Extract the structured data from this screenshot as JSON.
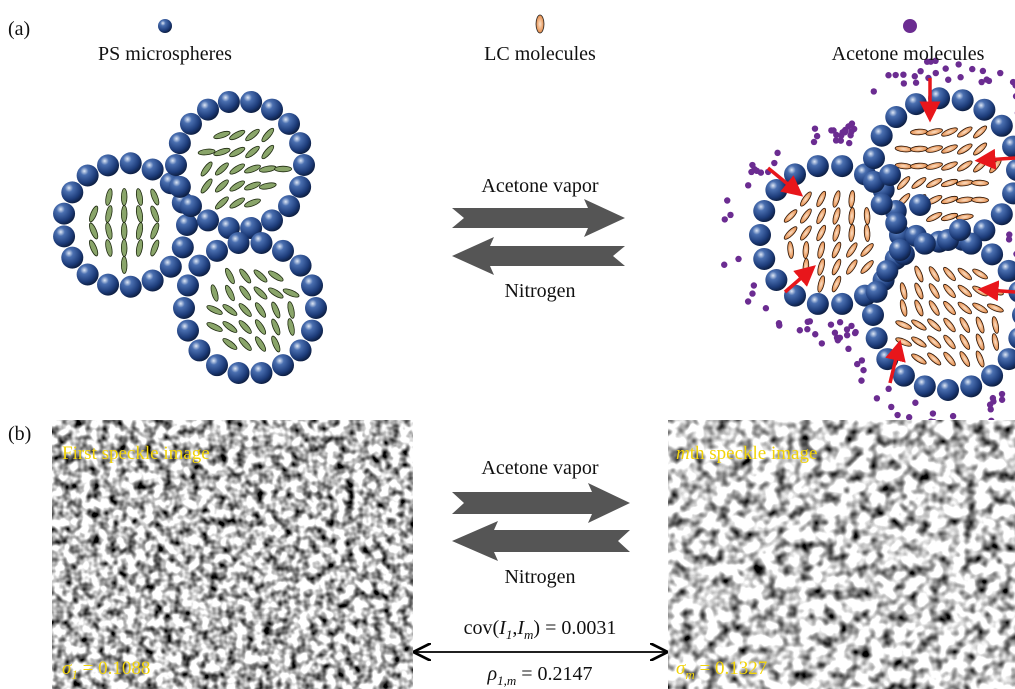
{
  "panel_a": {
    "label": "(a)",
    "legend": [
      {
        "label": "PS microspheres"
      },
      {
        "label": "LC molecules"
      },
      {
        "label": "Acetone molecules"
      }
    ],
    "forward": "Acetone vapor",
    "reverse": "Nitrogen"
  },
  "panel_b": {
    "label": "(b)",
    "forward": "Acetone vapor",
    "reverse": "Nitrogen",
    "first_image": {
      "caption": "First speckle image",
      "sigma": {
        "symbol": "σ",
        "subscript": "1",
        "rest": " = 0.1088"
      }
    },
    "mth_image": {
      "caption": {
        "italic": "m",
        "rest": "th speckle image"
      },
      "sigma": {
        "symbol": "σ",
        "subscript": "m",
        "rest": " = 0.1327"
      }
    },
    "cov": {
      "prefix": "cov(",
      "var1": "I",
      "sub1": "1",
      "comma": ",",
      "var2": "I",
      "sub2": "m",
      "rest": ") = 0.0031"
    },
    "rho": {
      "symbol": "ρ",
      "subscript": "1,m",
      "rest": " = 0.2147"
    }
  }
}
